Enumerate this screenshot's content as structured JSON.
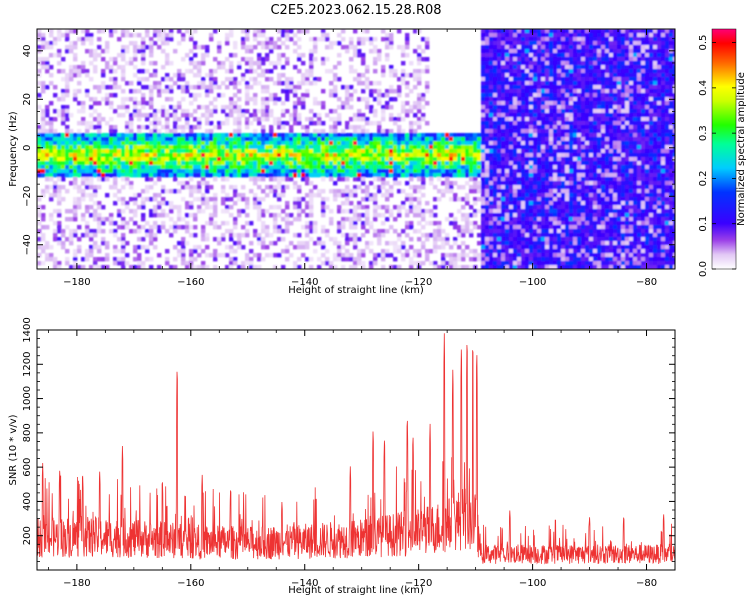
{
  "title": "C2E5.2023.062.15.28.R08",
  "chart_data": [
    {
      "type": "heatmap",
      "xlabel": "Height of straight line (km)",
      "ylabel": "Frequency (Hz)",
      "xlim": [
        -187,
        -75
      ],
      "ylim": [
        -50,
        49
      ],
      "xticks": [
        -180,
        -160,
        -140,
        -120,
        -100,
        -80
      ],
      "yticks": [
        40,
        20,
        0,
        -20,
        -40
      ],
      "colorbar": {
        "label": "Normalized spectral amplitude",
        "range": [
          0.0,
          0.53
        ],
        "ticks": [
          0.0,
          0.1,
          0.2,
          0.3,
          0.4,
          0.5
        ],
        "colormap": "rainbow (white-violet-blue-cyan-green-yellow-red-magenta)"
      },
      "regions": [
        {
          "x": [
            -187,
            -109
          ],
          "band_center_hz": -3,
          "band_halfwidth_hz": 9,
          "band_level": "0.1-0.5",
          "background_level": "0.0-0.08"
        },
        {
          "x": [
            -118,
            -109
          ],
          "upper_gap_hz": [
            5,
            49
          ],
          "background_level": "0.0"
        },
        {
          "x": [
            -109,
            -75
          ],
          "level": "0.05-0.15 uniform across all frequencies"
        }
      ]
    },
    {
      "type": "line",
      "xlabel": "Height of straight line (km)",
      "ylabel": "SNR (10 * v/v)",
      "xlim": [
        -187,
        -75
      ],
      "ylim": [
        0,
        1400
      ],
      "xticks": [
        -180,
        -160,
        -140,
        -120,
        -100,
        -80
      ],
      "yticks": [
        200,
        400,
        600,
        800,
        1000,
        1200,
        1400
      ],
      "grid": false,
      "series": [
        {
          "color": "#ee3333",
          "baseline": [
            [
              -187,
              200
            ],
            [
              -180,
              210
            ],
            [
              -170,
              200
            ],
            [
              -160,
              180
            ],
            [
              -150,
              170
            ],
            [
              -140,
              180
            ],
            [
              -130,
              200
            ],
            [
              -125,
              220
            ],
            [
              -120,
              240
            ],
            [
              -115,
              280
            ],
            [
              -112,
              330
            ],
            [
              -110,
              300
            ],
            [
              -109,
              100
            ],
            [
              -100,
              100
            ],
            [
              -90,
              100
            ],
            [
              -80,
              100
            ],
            [
              -75,
              100
            ]
          ],
          "peaks": [
            [
              -186,
              630
            ],
            [
              -183,
              600
            ],
            [
              -179,
              580
            ],
            [
              -176,
              590
            ],
            [
              -172,
              730
            ],
            [
              -165,
              540
            ],
            [
              -162.4,
              1210
            ],
            [
              -158,
              560
            ],
            [
              -153,
              490
            ],
            [
              -144,
              400
            ],
            [
              -138,
              440
            ],
            [
              -132,
              610
            ],
            [
              -128,
              830
            ],
            [
              -126,
              790
            ],
            [
              -122,
              910
            ],
            [
              -121,
              800
            ],
            [
              -118,
              860
            ],
            [
              -115.5,
              1400
            ],
            [
              -114,
              1200
            ],
            [
              -112.5,
              1340
            ],
            [
              -111.5,
              1380
            ],
            [
              -110.5,
              1360
            ],
            [
              -109.8,
              1300
            ],
            [
              -104,
              350
            ],
            [
              -96,
              310
            ],
            [
              -90,
              310
            ],
            [
              -84,
              320
            ],
            [
              -77,
              330
            ]
          ]
        }
      ]
    }
  ]
}
